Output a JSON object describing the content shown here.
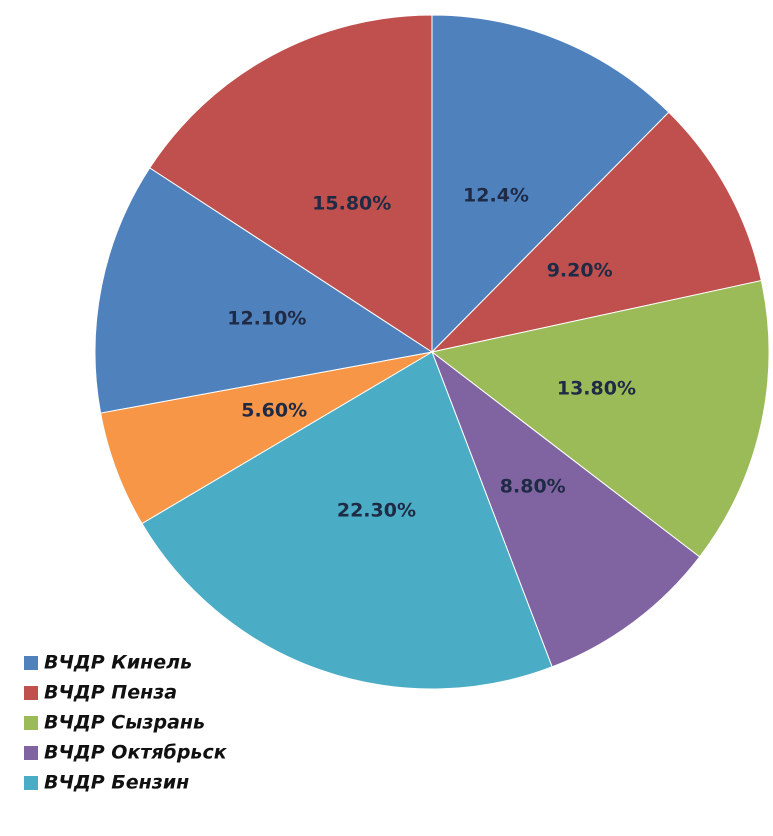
{
  "chart_data": {
    "type": "pie",
    "categories": [
      "ВЧДР Кинель",
      "ВЧДР Пенза",
      "ВЧДР Сызрань",
      "ВЧДР Октябрьск",
      "ВЧДР Бензин",
      null,
      null,
      null
    ],
    "values": [
      12.4,
      9.2,
      13.8,
      8.8,
      22.3,
      5.6,
      12.1,
      15.8
    ],
    "value_labels": [
      "12.4%",
      "9.20%",
      "13.80%",
      "8.80%",
      "22.30%",
      "5.60%",
      "12.10%",
      "15.80%"
    ],
    "colors": [
      "#4f81bd",
      "#c0504d",
      "#9bbb59",
      "#8064a2",
      "#4bacc6",
      "#f79646",
      "#4f81bd",
      "#c0504d"
    ],
    "legend": "bottom-left"
  }
}
